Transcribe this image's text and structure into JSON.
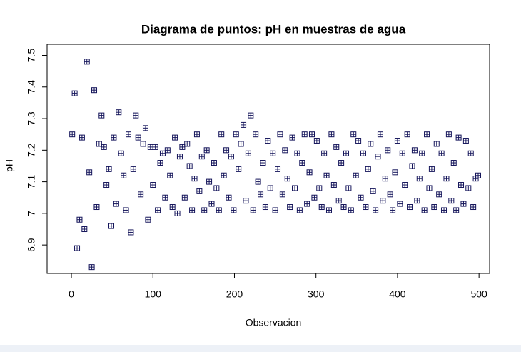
{
  "chart_data": {
    "type": "scatter",
    "title": "Diagrama de puntos: pH en muestras de agua",
    "x_label": "Observacion",
    "y_label": "pH",
    "color": "#14145a",
    "x": [
      1,
      4,
      7,
      10,
      13,
      16,
      19,
      22,
      25,
      28,
      31,
      34,
      37,
      40,
      43,
      46,
      49,
      52,
      55,
      58,
      61,
      64,
      67,
      70,
      73,
      76,
      79,
      82,
      85,
      88,
      91,
      94,
      97,
      100,
      103,
      106,
      109,
      112,
      115,
      118,
      121,
      124,
      127,
      130,
      133,
      136,
      139,
      142,
      145,
      148,
      151,
      154,
      157,
      160,
      163,
      166,
      169,
      172,
      175,
      178,
      181,
      184,
      187,
      190,
      193,
      196,
      199,
      202,
      205,
      208,
      211,
      214,
      217,
      220,
      223,
      226,
      229,
      232,
      235,
      238,
      241,
      244,
      247,
      250,
      253,
      256,
      259,
      262,
      265,
      268,
      271,
      274,
      277,
      280,
      283,
      286,
      289,
      292,
      295,
      298,
      301,
      304,
      307,
      310,
      313,
      316,
      319,
      322,
      325,
      328,
      331,
      334,
      337,
      340,
      343,
      346,
      349,
      352,
      355,
      358,
      361,
      364,
      367,
      370,
      373,
      376,
      379,
      382,
      385,
      388,
      391,
      394,
      397,
      400,
      403,
      406,
      409,
      412,
      415,
      418,
      421,
      424,
      427,
      430,
      433,
      436,
      439,
      442,
      445,
      448,
      451,
      454,
      457,
      460,
      463,
      466,
      469,
      472,
      475,
      478,
      481,
      484,
      487,
      490,
      493,
      496,
      499
    ],
    "values": [
      7.25,
      7.38,
      6.89,
      6.98,
      7.24,
      6.95,
      7.48,
      7.13,
      6.83,
      7.39,
      7.02,
      7.22,
      7.31,
      7.21,
      7.09,
      7.14,
      6.96,
      7.24,
      7.03,
      7.32,
      7.19,
      7.12,
      7.01,
      7.25,
      6.94,
      7.14,
      7.31,
      7.24,
      7.06,
      7.22,
      7.27,
      6.98,
      7.21,
      7.09,
      7.21,
      7.01,
      7.16,
      7.19,
      7.05,
      7.2,
      7.12,
      7.02,
      7.24,
      7.0,
      7.18,
      7.21,
      7.05,
      7.22,
      7.15,
      7.01,
      7.11,
      7.25,
      7.07,
      7.18,
      7.01,
      7.2,
      7.1,
      7.03,
      7.16,
      7.08,
      7.01,
      7.25,
      7.12,
      7.2,
      7.05,
      7.18,
      7.01,
      7.25,
      7.14,
      7.22,
      7.28,
      7.04,
      7.19,
      7.31,
      7.01,
      7.25,
      7.1,
      7.06,
      7.16,
      7.02,
      7.23,
      7.08,
      7.19,
      7.01,
      7.14,
      7.25,
      7.06,
      7.2,
      7.11,
      7.02,
      7.24,
      7.08,
      7.19,
      7.01,
      7.16,
      7.25,
      7.03,
      7.13,
      7.25,
      7.05,
      7.23,
      7.08,
      7.02,
      7.19,
      7.12,
      7.01,
      7.25,
      7.09,
      7.21,
      7.04,
      7.16,
      7.02,
      7.19,
      7.08,
      7.01,
      7.25,
      7.12,
      7.23,
      7.05,
      7.19,
      7.02,
      7.14,
      7.22,
      7.07,
      7.01,
      7.18,
      7.25,
      7.04,
      7.11,
      7.2,
      7.06,
      7.01,
      7.13,
      7.23,
      7.03,
      7.19,
      7.09,
      7.25,
      7.02,
      7.15,
      7.2,
      7.04,
      7.11,
      7.19,
      7.01,
      7.25,
      7.08,
      7.14,
      7.02,
      7.22,
      7.06,
      7.19,
      7.01,
      7.11,
      7.25,
      7.04,
      7.16,
      7.01,
      7.24,
      7.09,
      7.03,
      7.23,
      7.08,
      7.19,
      7.02,
      7.11,
      7.12
    ],
    "xlim": [
      -29.8,
      513
    ],
    "ylim": [
      6.81,
      7.535
    ],
    "xticks": [
      0,
      100,
      200,
      300,
      400,
      500
    ],
    "yticks": [
      6.9,
      7.0,
      7.1,
      7.2,
      7.3,
      7.4,
      7.5
    ]
  }
}
